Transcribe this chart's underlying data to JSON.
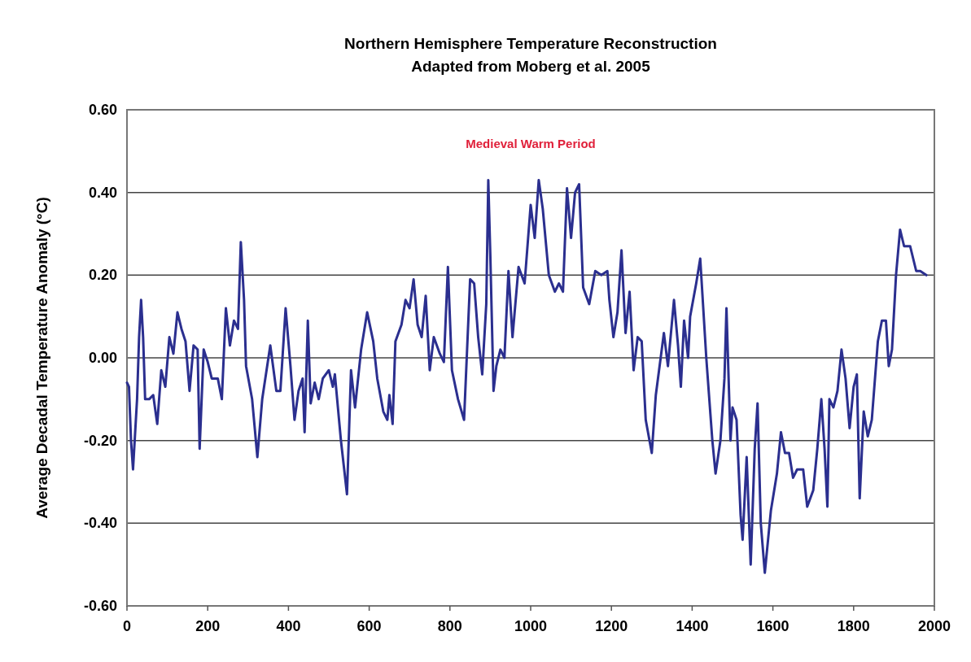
{
  "chart_data": {
    "type": "line",
    "title": "Northern Hemisphere Temperature Reconstruction",
    "subtitle": "Adapted from Moberg et al. 2005",
    "ylabel": "Average Decadal Temperature Anomaly (°C)",
    "annotations": [
      "Medieval Warm Period"
    ],
    "xlim": [
      0,
      2000
    ],
    "xticks": [
      0,
      200,
      400,
      600,
      800,
      1000,
      1200,
      1400,
      1600,
      1800,
      2000
    ],
    "ylim": [
      -0.6,
      0.6
    ],
    "yticks": [
      {
        "value": -0.6,
        "label": "-0.60"
      },
      {
        "value": -0.4,
        "label": "-0.40"
      },
      {
        "value": -0.2,
        "label": "-0.20"
      },
      {
        "value": 0,
        "label": "0.00"
      },
      {
        "value": 0.2,
        "label": "0.20"
      },
      {
        "value": 0.4,
        "label": "0.40"
      },
      {
        "value": 0.6,
        "label": "0.60"
      }
    ],
    "grid": "y",
    "marker": "none",
    "line_style": "solid",
    "series": [
      {
        "color": "#2b2f8f",
        "x": [
          0,
          5,
          10,
          15,
          25,
          30,
          35,
          40,
          45,
          55,
          65,
          75,
          85,
          95,
          105,
          115,
          125,
          135,
          145,
          155,
          165,
          175,
          180,
          190,
          200,
          210,
          225,
          235,
          245,
          255,
          265,
          275,
          282,
          290,
          295,
          310,
          323,
          335,
          355,
          370,
          380,
          393,
          405,
          415,
          425,
          435,
          440,
          448,
          455,
          465,
          475,
          485,
          500,
          510,
          515,
          530,
          545,
          555,
          565,
          580,
          595,
          610,
          620,
          635,
          645,
          650,
          658,
          665,
          680,
          690,
          700,
          710,
          720,
          730,
          740,
          750,
          760,
          775,
          785,
          795,
          805,
          820,
          835,
          850,
          860,
          870,
          880,
          890,
          895,
          900,
          908,
          915,
          925,
          935,
          945,
          955,
          970,
          985,
          1000,
          1010,
          1020,
          1030,
          1045,
          1060,
          1070,
          1080,
          1090,
          1100,
          1110,
          1120,
          1130,
          1145,
          1160,
          1175,
          1190,
          1195,
          1205,
          1215,
          1225,
          1235,
          1245,
          1255,
          1265,
          1275,
          1285,
          1300,
          1310,
          1330,
          1340,
          1355,
          1365,
          1372,
          1380,
          1390,
          1395,
          1410,
          1420,
          1435,
          1450,
          1458,
          1470,
          1480,
          1485,
          1495,
          1500,
          1510,
          1520,
          1525,
          1535,
          1545,
          1555,
          1562,
          1570,
          1580,
          1595,
          1610,
          1620,
          1630,
          1640,
          1650,
          1660,
          1675,
          1685,
          1700,
          1710,
          1720,
          1728,
          1735,
          1740,
          1750,
          1760,
          1770,
          1780,
          1790,
          1800,
          1808,
          1815,
          1825,
          1835,
          1845,
          1860,
          1870,
          1880,
          1887,
          1895,
          1905,
          1915,
          1925,
          1940,
          1955,
          1965,
          1980
        ],
        "values": [
          -0.06,
          -0.07,
          -0.2,
          -0.27,
          -0.1,
          0.05,
          0.14,
          0.05,
          -0.1,
          -0.1,
          -0.09,
          -0.16,
          -0.03,
          -0.07,
          0.05,
          0.01,
          0.11,
          0.07,
          0.04,
          -0.08,
          0.03,
          0.02,
          -0.22,
          0.02,
          -0.01,
          -0.05,
          -0.05,
          -0.1,
          0.12,
          0.03,
          0.09,
          0.07,
          0.28,
          0.14,
          -0.02,
          -0.1,
          -0.24,
          -0.1,
          0.03,
          -0.08,
          -0.08,
          0.12,
          -0.02,
          -0.15,
          -0.08,
          -0.05,
          -0.18,
          0.09,
          -0.11,
          -0.06,
          -0.1,
          -0.05,
          -0.03,
          -0.07,
          -0.04,
          -0.2,
          -0.33,
          -0.03,
          -0.12,
          0.02,
          0.11,
          0.04,
          -0.05,
          -0.13,
          -0.15,
          -0.09,
          -0.16,
          0.04,
          0.08,
          0.14,
          0.12,
          0.19,
          0.08,
          0.05,
          0.15,
          -0.03,
          0.05,
          0.01,
          -0.01,
          0.22,
          -0.03,
          -0.1,
          -0.15,
          0.19,
          0.18,
          0.05,
          -0.04,
          0.13,
          0.43,
          0.25,
          -0.08,
          -0.02,
          0.02,
          0,
          0.21,
          0.05,
          0.22,
          0.18,
          0.37,
          0.29,
          0.43,
          0.36,
          0.2,
          0.16,
          0.18,
          0.16,
          0.41,
          0.29,
          0.4,
          0.42,
          0.17,
          0.13,
          0.21,
          0.2,
          0.21,
          0.14,
          0.05,
          0.11,
          0.26,
          0.06,
          0.16,
          -0.03,
          0.05,
          0.04,
          -0.15,
          -0.23,
          -0.09,
          0.06,
          -0.02,
          0.14,
          0.03,
          -0.07,
          0.09,
          0,
          0.1,
          0.18,
          0.24,
          0,
          -0.2,
          -0.28,
          -0.2,
          -0.05,
          0.12,
          -0.2,
          -0.12,
          -0.15,
          -0.38,
          -0.44,
          -0.24,
          -0.5,
          -0.22,
          -0.11,
          -0.4,
          -0.52,
          -0.37,
          -0.28,
          -0.18,
          -0.23,
          -0.23,
          -0.29,
          -0.27,
          -0.27,
          -0.36,
          -0.32,
          -0.22,
          -0.1,
          -0.22,
          -0.36,
          -0.1,
          -0.12,
          -0.08,
          0.02,
          -0.05,
          -0.17,
          -0.07,
          -0.04,
          -0.34,
          -0.13,
          -0.19,
          -0.15,
          0.04,
          0.09,
          0.09,
          -0.02,
          0.02,
          0.2,
          0.31,
          0.27,
          0.27,
          0.21,
          0.21,
          0.2
        ]
      }
    ]
  }
}
